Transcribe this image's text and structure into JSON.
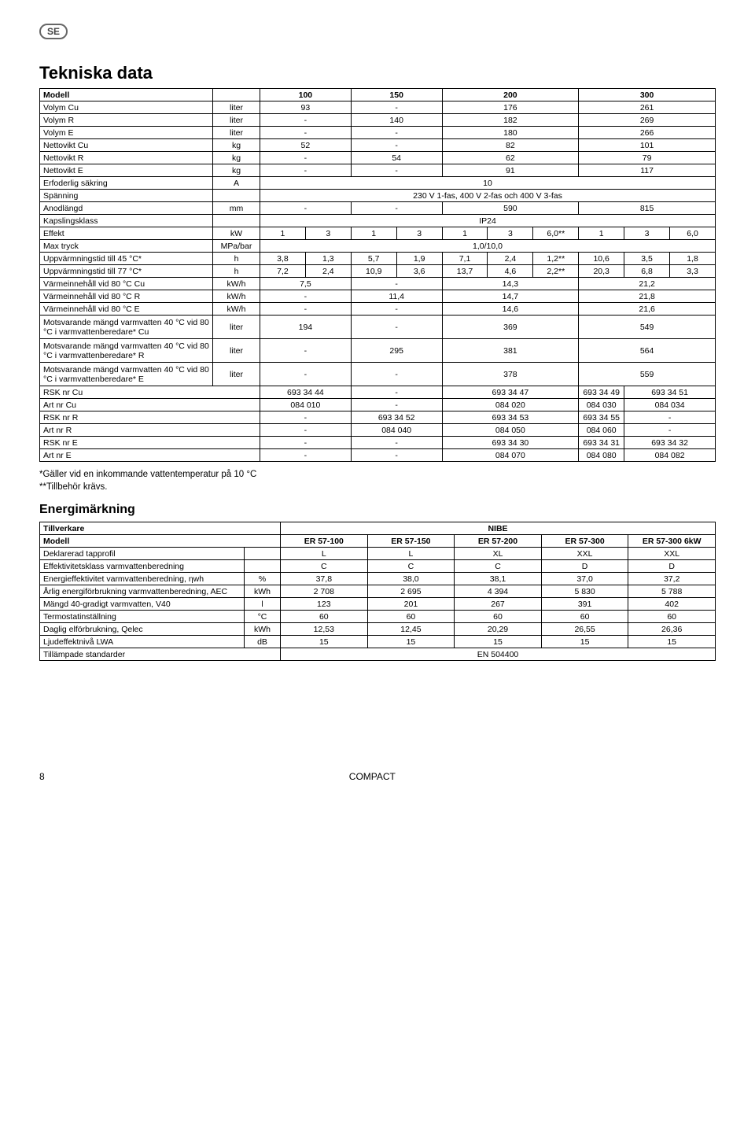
{
  "badge": "SE",
  "title": "Tekniska data",
  "footer_page": "8",
  "footer_center": "COMPACT",
  "table1": {
    "header": {
      "label": "Modell",
      "cols": [
        "100",
        "150",
        "200",
        "300"
      ]
    },
    "rows_single4": [
      {
        "label": "Volym Cu",
        "unit": "liter",
        "v": [
          "93",
          "-",
          "176",
          "261"
        ]
      },
      {
        "label": "Volym R",
        "unit": "liter",
        "v": [
          "-",
          "140",
          "182",
          "269"
        ]
      },
      {
        "label": "Volym E",
        "unit": "liter",
        "v": [
          "-",
          "-",
          "180",
          "266"
        ]
      },
      {
        "label": "Nettovikt Cu",
        "unit": "kg",
        "v": [
          "52",
          "-",
          "82",
          "101"
        ]
      },
      {
        "label": "Nettovikt R",
        "unit": "kg",
        "v": [
          "-",
          "54",
          "62",
          "79"
        ]
      },
      {
        "label": "Nettovikt E",
        "unit": "kg",
        "v": [
          "-",
          "-",
          "91",
          "117"
        ]
      }
    ],
    "row_fuse": {
      "label": "Erfoderlig säkring",
      "unit": "A",
      "v": "10"
    },
    "row_voltage": {
      "label": "Spänning",
      "v": "230 V 1-fas, 400 V 2-fas och 400 V 3-fas"
    },
    "row_anode": {
      "label": "Anodlängd",
      "unit": "mm",
      "v": [
        "-",
        "-",
        "590",
        "815"
      ]
    },
    "row_ip": {
      "label": "Kapslingsklass",
      "v": "IP24"
    },
    "row_effekt": {
      "label": "Effekt",
      "unit": "kW",
      "v": [
        "1",
        "3",
        "1",
        "3",
        "1",
        "3",
        "6,0**",
        "1",
        "3",
        "6,0"
      ]
    },
    "row_press": {
      "label": "Max tryck",
      "unit": "MPa/bar",
      "v": "1,0/10,0"
    },
    "row_heat45": {
      "label": "Uppvärmningstid till 45 °C*",
      "unit": "h",
      "v": [
        "3,8",
        "1,3",
        "5,7",
        "1,9",
        "7,1",
        "2,4",
        "1,2**",
        "10,6",
        "3,5",
        "1,8"
      ]
    },
    "row_heat77": {
      "label": "Uppvärmningstid till 77 °C*",
      "unit": "h",
      "v": [
        "7,2",
        "2,4",
        "10,9",
        "3,6",
        "13,7",
        "4,6",
        "2,2**",
        "20,3",
        "6,8",
        "3,3"
      ]
    },
    "rows_heat4": [
      {
        "label": "Värmeinnehåll vid 80 °C Cu",
        "unit": "kW/h",
        "v": [
          "7,5",
          "-",
          "14,3",
          "21,2"
        ]
      },
      {
        "label": "Värmeinnehåll vid 80 °C R",
        "unit": "kW/h",
        "v": [
          "-",
          "11,4",
          "14,7",
          "21,8"
        ]
      },
      {
        "label": "Värmeinnehåll vid 80 °C E",
        "unit": "kW/h",
        "v": [
          "-",
          "-",
          "14,6",
          "21,6"
        ]
      },
      {
        "label": "Motsvarande mängd varmvatten 40 °C vid 80 °C i varmvattenberedare* Cu",
        "unit": "liter",
        "v": [
          "194",
          "-",
          "369",
          "549"
        ]
      },
      {
        "label": "Motsvarande mängd varmvatten 40 °C vid 80 °C i varmvattenberedare* R",
        "unit": "liter",
        "v": [
          "-",
          "295",
          "381",
          "564"
        ]
      },
      {
        "label": "Motsvarande mängd varmvatten 40 °C vid 80 °C i varmvattenberedare* E",
        "unit": "liter",
        "v": [
          "-",
          "-",
          "378",
          "559"
        ]
      }
    ],
    "rows_art": [
      {
        "label": "RSK nr Cu",
        "v": [
          "693 34 44",
          "-",
          "693 34 47",
          "693 34 49",
          "693 34 51"
        ]
      },
      {
        "label": "Art nr Cu",
        "v": [
          "084 010",
          "-",
          "084 020",
          "084 030",
          "084 034"
        ]
      },
      {
        "label": "RSK nr R",
        "v": [
          "-",
          "693 34 52",
          "693 34 53",
          "693 34 55",
          "-"
        ]
      },
      {
        "label": "Art nr R",
        "v": [
          "-",
          "084 040",
          "084 050",
          "084 060",
          "-"
        ]
      },
      {
        "label": "RSK nr E",
        "v": [
          "-",
          "-",
          "693 34 30",
          "693 34 31",
          "693 34 32"
        ]
      },
      {
        "label": "Art nr E",
        "v": [
          "-",
          "-",
          "084 070",
          "084 080",
          "084 082"
        ]
      }
    ]
  },
  "note1": "*Gäller vid en inkommande vattentemperatur på 10 °C",
  "note2": "**Tillbehör krävs.",
  "energy_title": "Energimärkning",
  "table2": {
    "header1": {
      "label": "Tillverkare",
      "v": "NIBE"
    },
    "header2": {
      "label": "Modell",
      "v": [
        "ER 57-100",
        "ER 57-150",
        "ER 57-200",
        "ER 57-300",
        "ER 57-300 6kW"
      ]
    },
    "rows": [
      {
        "label": "Deklarerad tapprofil",
        "unit": "",
        "v": [
          "L",
          "L",
          "XL",
          "XXL",
          "XXL"
        ]
      },
      {
        "label": "Effektivitetsklass varmvattenberedning",
        "unit": "",
        "v": [
          "C",
          "C",
          "C",
          "D",
          "D"
        ]
      },
      {
        "label": "Energieffektivitet varmvattenberedning, ηwh",
        "unit": "%",
        "v": [
          "37,8",
          "38,0",
          "38,1",
          "37,0",
          "37,2"
        ]
      },
      {
        "label": "Årlig energiförbrukning varmvattenberedning, AEC",
        "unit": "kWh",
        "v": [
          "2 708",
          "2 695",
          "4 394",
          "5 830",
          "5 788"
        ]
      },
      {
        "label": "Mängd 40-gradigt varmvatten, V40",
        "unit": "l",
        "v": [
          "123",
          "201",
          "267",
          "391",
          "402"
        ]
      },
      {
        "label": "Termostatinställning",
        "unit": "°C",
        "v": [
          "60",
          "60",
          "60",
          "60",
          "60"
        ]
      },
      {
        "label": "Daglig elförbrukning, Qelec",
        "unit": "kWh",
        "v": [
          "12,53",
          "12,45",
          "20,29",
          "26,55",
          "26,36"
        ]
      },
      {
        "label": "Ljudeffektnivå LWA",
        "unit": "dB",
        "v": [
          "15",
          "15",
          "15",
          "15",
          "15"
        ]
      }
    ],
    "row_std": {
      "label": "Tillämpade standarder",
      "v": "EN 504400"
    }
  }
}
